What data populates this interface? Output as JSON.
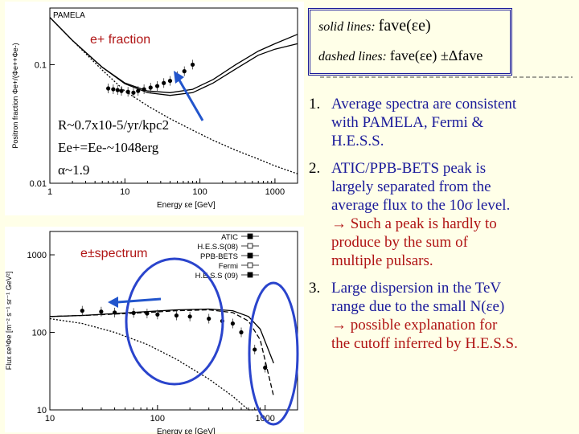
{
  "legend_box": {
    "solid_label": "solid lines:",
    "solid_formula": "fave(εe)",
    "dashed_label": "dashed lines:",
    "dashed_formula": "fave(εe) ±Δfave"
  },
  "points": [
    {
      "num": "1.",
      "lines": [
        {
          "text": "Average spectra are consistent",
          "color": "blue"
        },
        {
          "text": "with PAMELA, Fermi &",
          "color": "blue"
        },
        {
          "text": "H.E.S.S.",
          "color": "blue"
        }
      ]
    },
    {
      "num": "2.",
      "lines": [
        {
          "text": "ATIC/PPB-BETS peak is",
          "color": "blue"
        },
        {
          "text": "largely separated from the",
          "color": "blue"
        },
        {
          "text": "average flux to the 10σ level.",
          "color": "blue"
        },
        {
          "text": "→ Such a peak is hardly to",
          "color": "red"
        },
        {
          "text": "produce by the sum of",
          "color": "red"
        },
        {
          "text": "multiple pulsars.",
          "color": "red"
        }
      ]
    },
    {
      "num": "3.",
      "lines": [
        {
          "text": "Large dispersion in the TeV",
          "color": "blue"
        },
        {
          "text": "range due to the small N(εe)",
          "color": "blue"
        },
        {
          "text": "→ possible explanation for",
          "color": "red"
        },
        {
          "text": "the cutoff inferred by H.E.S.S.",
          "color": "red"
        }
      ]
    }
  ],
  "params": {
    "r": "R~0.7x10-5/yr/kpc2",
    "e": "Ee+=Ee-~1048erg",
    "alpha": "α~1.9"
  },
  "chart_data": [
    {
      "type": "line",
      "title": "PAMELA",
      "annotation": "e+ fraction",
      "xlabel": "Energy εe [GeV]",
      "ylabel": "Positron fraction Φe+/(Φe++Φe-)",
      "xscale": "log",
      "yscale": "log",
      "xlim": [
        1,
        2000
      ],
      "ylim": [
        0.01,
        0.3
      ],
      "x_ticks": [
        "1",
        "10",
        "100",
        "1000"
      ],
      "y_ticks": [
        "0.1",
        "0.01"
      ],
      "series": [
        {
          "style": "solid",
          "x": [
            1,
            2,
            5,
            10,
            20,
            40,
            80,
            150,
            300,
            600,
            1000,
            2000
          ],
          "y": [
            0.25,
            0.16,
            0.095,
            0.07,
            0.06,
            0.058,
            0.062,
            0.075,
            0.1,
            0.13,
            0.15,
            0.18
          ]
        },
        {
          "style": "solid",
          "x": [
            1,
            2,
            5,
            10,
            20,
            40,
            80,
            150,
            300,
            600,
            1000,
            2000
          ],
          "y": [
            0.25,
            0.16,
            0.095,
            0.069,
            0.058,
            0.055,
            0.058,
            0.07,
            0.092,
            0.12,
            0.135,
            0.15
          ]
        },
        {
          "style": "dotted",
          "x": [
            1,
            2,
            5,
            10,
            20,
            40,
            80,
            150,
            300,
            600,
            1000,
            2000
          ],
          "y": [
            0.25,
            0.16,
            0.09,
            0.06,
            0.045,
            0.035,
            0.028,
            0.023,
            0.019,
            0.016,
            0.014,
            0.012
          ]
        }
      ],
      "data_points": {
        "x": [
          6,
          7,
          8,
          9,
          11,
          13,
          15,
          18,
          22,
          27,
          33,
          40,
          50,
          62,
          80
        ],
        "y": [
          0.063,
          0.062,
          0.061,
          0.06,
          0.059,
          0.058,
          0.06,
          0.062,
          0.064,
          0.066,
          0.07,
          0.073,
          0.08,
          0.088,
          0.1
        ]
      }
    },
    {
      "type": "line",
      "annotation": "e±spectrum",
      "xlabel": "Energy εe [GeV]",
      "ylabel": "Flux εe³Φe [m⁻² s⁻¹ sr⁻¹ GeV²]",
      "xscale": "log",
      "yscale": "log",
      "xlim": [
        10,
        2000
      ],
      "ylim": [
        10,
        2000
      ],
      "x_ticks": [
        "10",
        "100",
        "1000"
      ],
      "y_ticks": [
        "1000",
        "100",
        "10"
      ],
      "legend": {
        "position": "top-right",
        "entries": [
          "ATIC",
          "H.E.S.S(08)",
          "PPB-BETS",
          "Fermi",
          "H.E.S.S (09)"
        ]
      },
      "series": [
        {
          "style": "solid",
          "x": [
            10,
            20,
            40,
            80,
            150,
            300,
            500,
            700,
            900,
            1200
          ],
          "y": [
            160,
            165,
            175,
            185,
            195,
            200,
            190,
            160,
            110,
            40
          ]
        },
        {
          "style": "dashed",
          "x": [
            10,
            20,
            40,
            80,
            150,
            300,
            500,
            700,
            900,
            1200
          ],
          "y": [
            160,
            165,
            172,
            180,
            190,
            195,
            180,
            140,
            80,
            15
          ]
        },
        {
          "style": "dotted",
          "x": [
            10,
            20,
            40,
            80,
            150,
            300,
            500,
            700,
            900
          ],
          "y": [
            150,
            130,
            100,
            70,
            45,
            25,
            15,
            10,
            10
          ]
        }
      ],
      "data_points": {
        "x": [
          20,
          30,
          40,
          60,
          80,
          100,
          150,
          200,
          300,
          400,
          500,
          600,
          800,
          1000
        ],
        "y": [
          190,
          185,
          180,
          178,
          175,
          170,
          165,
          160,
          150,
          140,
          130,
          100,
          60,
          35
        ]
      }
    }
  ]
}
